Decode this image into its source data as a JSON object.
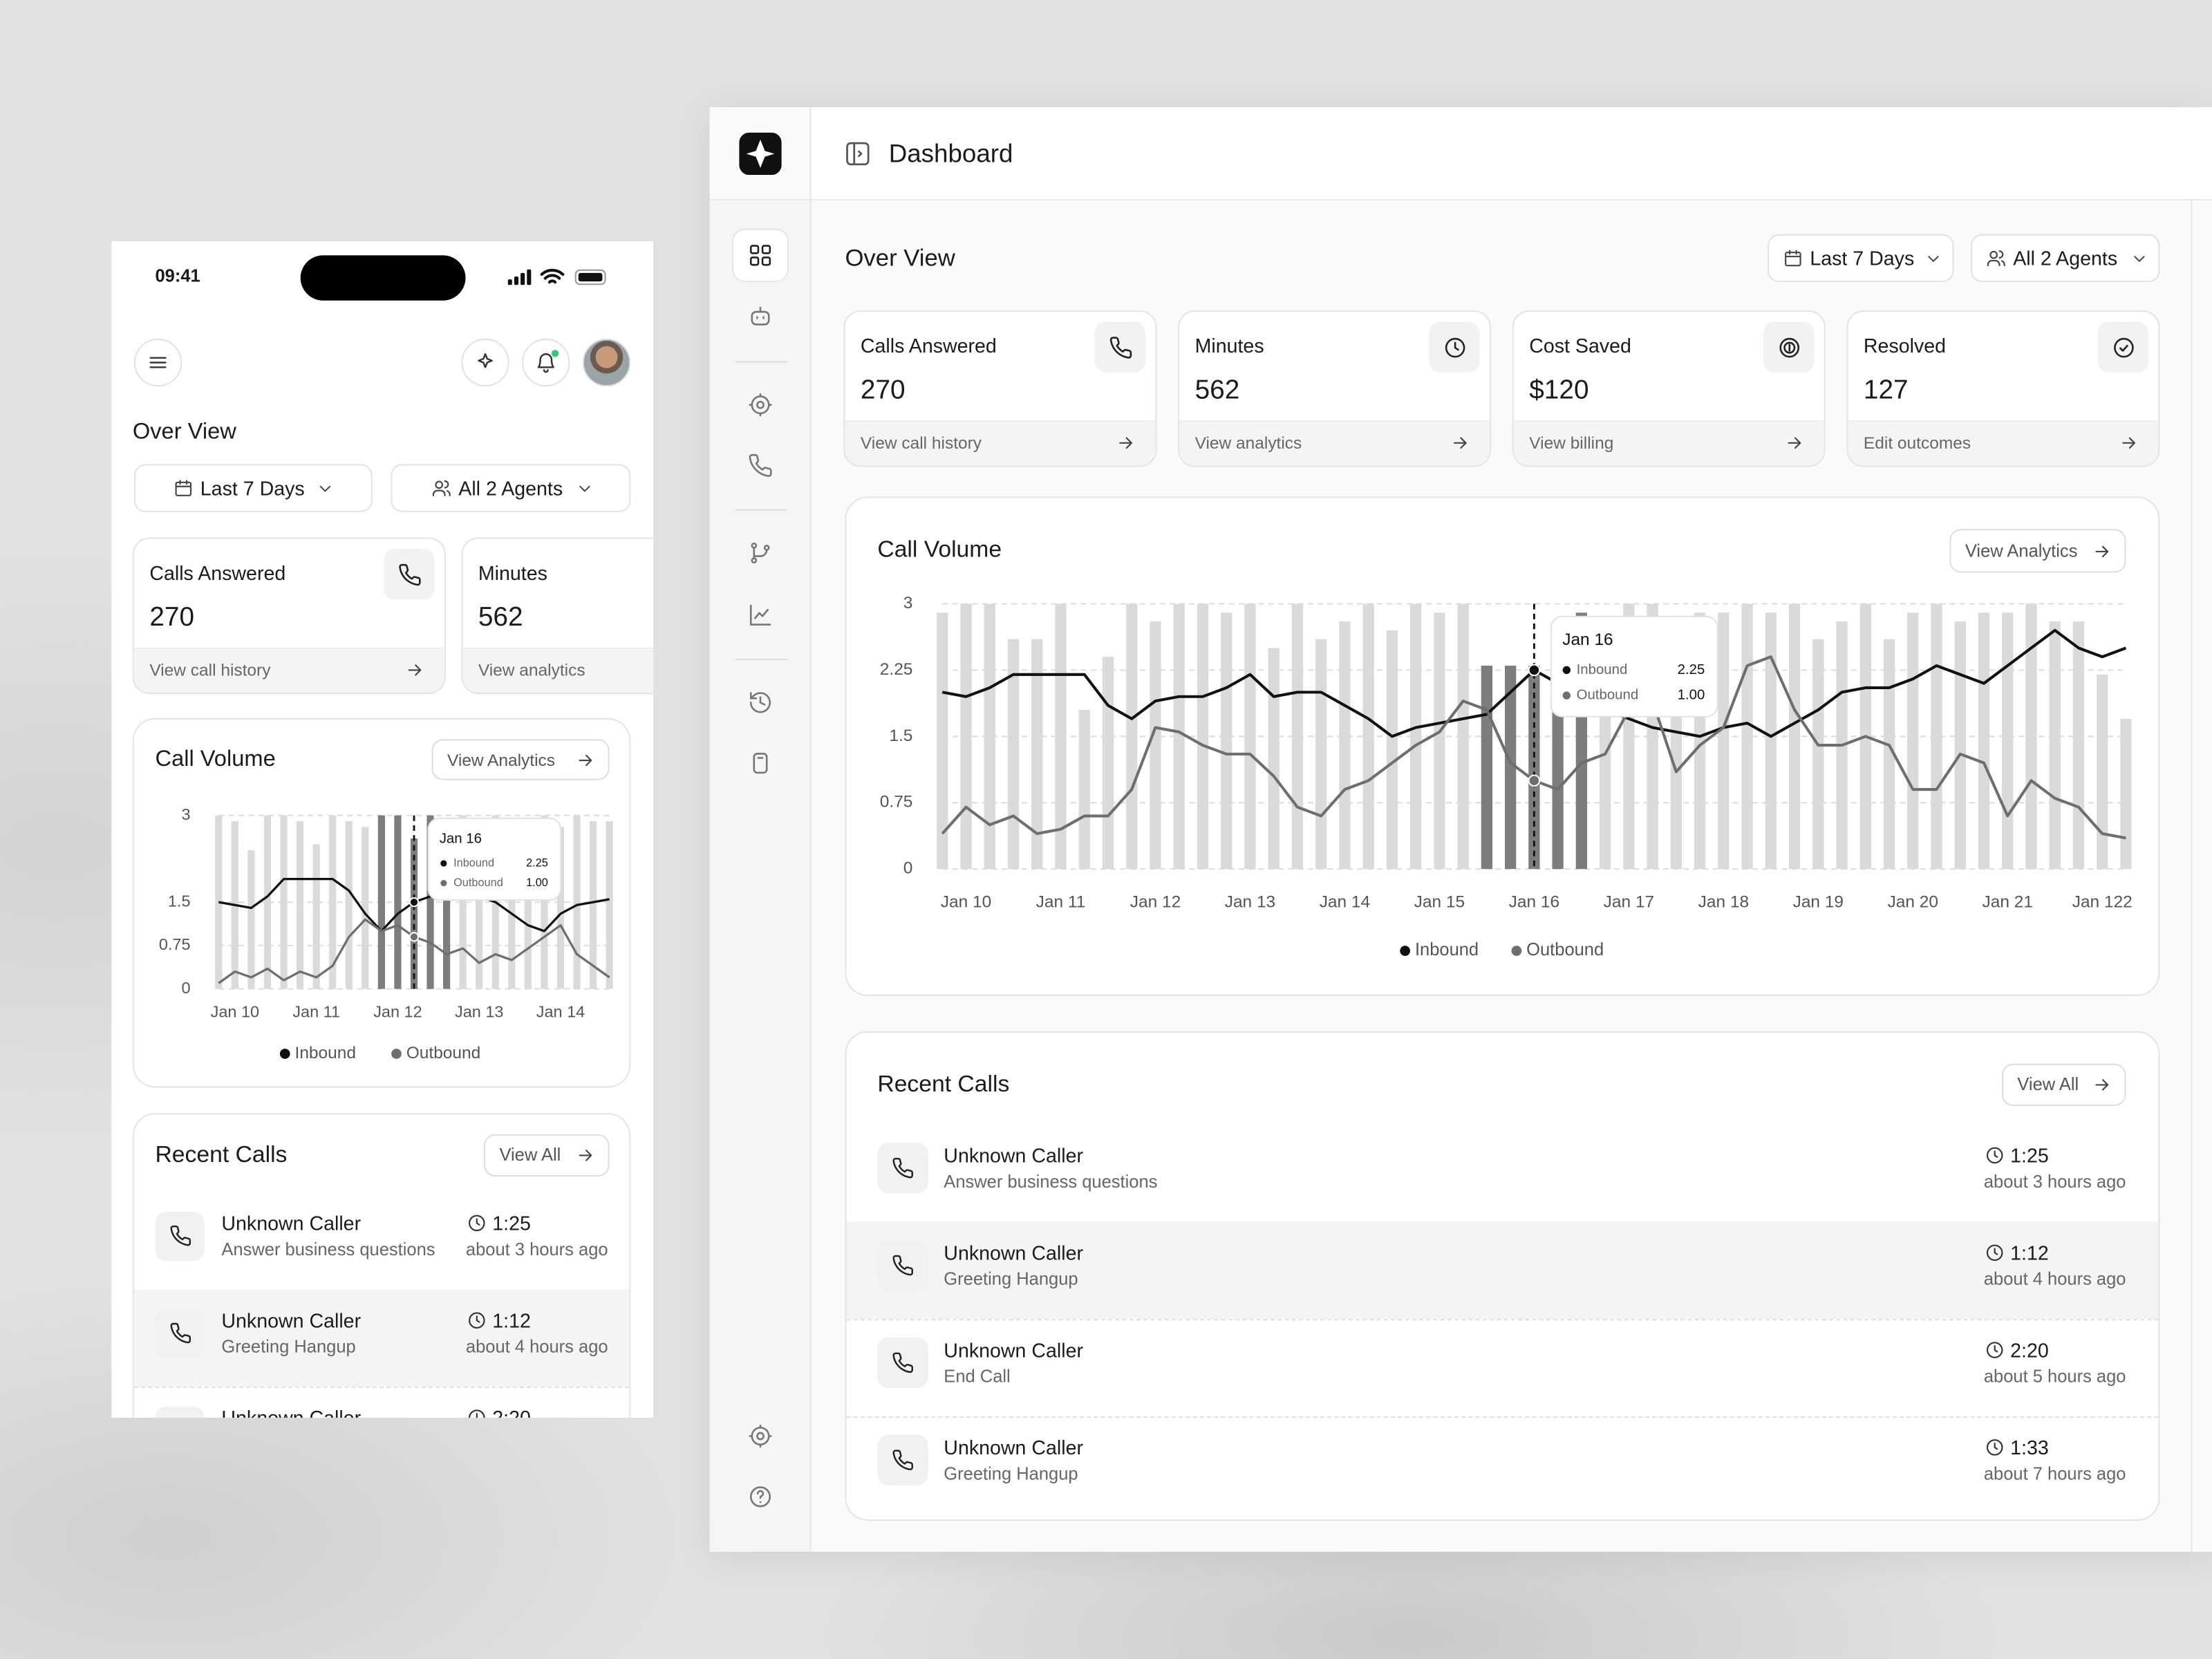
{
  "status_time": "09:41",
  "header": {
    "title": "Dashboard"
  },
  "overview": {
    "title": "Over View",
    "filters": [
      "Last 7 Days",
      "All 2 Agents"
    ]
  },
  "cards": [
    {
      "title": "Calls Answered",
      "value": "270",
      "link": "View call history"
    },
    {
      "title": "Minutes",
      "value": "562",
      "link": "View analytics"
    },
    {
      "title": "Cost Saved",
      "value": "$120",
      "link": "View billing"
    },
    {
      "title": "Resolved",
      "value": "127",
      "link": "Edit outcomes"
    }
  ],
  "chart_data": [
    {
      "type": "combo",
      "title": "Call Volume",
      "action": "View Analytics",
      "categories": [
        null,
        "Jan 10",
        null,
        null,
        null,
        null,
        "Jan 11",
        null,
        null,
        null,
        null,
        "Jan 12",
        null,
        null,
        null,
        null,
        "Jan 13",
        null,
        null,
        null,
        null,
        "Jan 14",
        null,
        null,
        null
      ],
      "bars": {
        "color": "#dadada",
        "highlight_color": "#7d7d7d",
        "values": [
          3,
          2.9,
          2.4,
          3,
          3,
          2.9,
          2.5,
          3,
          2.9,
          2.8,
          3,
          3,
          2.6,
          3,
          2.9,
          3,
          2.7,
          3,
          2.9,
          2.9,
          3,
          2.8,
          3,
          2.9,
          2.9
        ]
      },
      "series": [
        {
          "name": "Inbound",
          "color": "#111111",
          "values": [
            1.5,
            1.45,
            1.4,
            1.6,
            1.9,
            1.9,
            1.9,
            1.9,
            1.7,
            1.3,
            1.0,
            1.3,
            1.5,
            1.6,
            1.6,
            1.6,
            1.6,
            1.5,
            1.3,
            1.1,
            1.0,
            1.3,
            1.45,
            1.5,
            1.55
          ]
        },
        {
          "name": "Outbound",
          "color": "#6e6e6e",
          "values": [
            0.1,
            0.3,
            0.2,
            0.35,
            0.15,
            0.3,
            0.2,
            0.4,
            0.9,
            1.2,
            1.0,
            1.1,
            0.9,
            0.8,
            0.6,
            0.7,
            0.45,
            0.6,
            0.5,
            0.7,
            0.9,
            1.1,
            0.6,
            0.4,
            0.2
          ]
        }
      ],
      "ylim": [
        0,
        3
      ],
      "yticks": [
        0,
        0.75,
        1.5,
        3
      ],
      "grid": true,
      "tooltip": {
        "title": "Jan 16",
        "rows": [
          {
            "name": "Inbound",
            "value": 2.25
          },
          {
            "name": "Outbound",
            "value": 1,
            "label": "1.00"
          }
        ]
      }
    },
    {
      "type": "combo",
      "title": "Call Volume",
      "action": "View Analytics",
      "categories": [
        null,
        "Jan 10",
        null,
        null,
        null,
        "Jan 11",
        null,
        null,
        null,
        "Jan 12",
        null,
        null,
        null,
        "Jan 13",
        null,
        null,
        null,
        "Jan 14",
        null,
        null,
        null,
        "Jan 15",
        null,
        null,
        null,
        "Jan 16",
        null,
        null,
        null,
        "Jan 17",
        null,
        null,
        null,
        "Jan 18",
        null,
        null,
        null,
        "Jan 19",
        null,
        null,
        null,
        "Jan 20",
        null,
        null,
        null,
        "Jan 21",
        null,
        null,
        null,
        "Jan 122",
        null
      ],
      "bars": {
        "color": "#dadada",
        "highlight_color": "#7d7d7d",
        "values": [
          2.9,
          3,
          3,
          2.6,
          2.6,
          3,
          1.8,
          2.4,
          3,
          2.8,
          3,
          3,
          2.9,
          3,
          2.5,
          3,
          2.6,
          2.8,
          3,
          2.7,
          3,
          2.9,
          3,
          2.3,
          2.3,
          2.3,
          2.3,
          2.9,
          2.8,
          3,
          3,
          2.4,
          2.9,
          2.9,
          3,
          2.9,
          3,
          2.6,
          2.8,
          3,
          2.6,
          2.9,
          3,
          2.8,
          2.9,
          2.9,
          3,
          2.8,
          2.8,
          2.2,
          1.7
        ]
      },
      "series": [
        {
          "name": "Inbound",
          "color": "#111111",
          "values": [
            2.0,
            1.95,
            2.05,
            2.2,
            2.2,
            2.2,
            2.2,
            1.85,
            1.7,
            1.9,
            1.95,
            1.95,
            2.05,
            2.2,
            1.95,
            2.0,
            2.0,
            1.85,
            1.7,
            1.5,
            1.6,
            1.65,
            1.7,
            1.75,
            2.0,
            2.25,
            2.1,
            1.95,
            1.8,
            1.7,
            1.6,
            1.55,
            1.5,
            1.6,
            1.65,
            1.5,
            1.65,
            1.8,
            2.0,
            2.05,
            2.05,
            2.15,
            2.3,
            2.2,
            2.1,
            2.3,
            2.5,
            2.7,
            2.5,
            2.4,
            2.5
          ]
        },
        {
          "name": "Outbound",
          "color": "#6e6e6e",
          "values": [
            0.4,
            0.7,
            0.5,
            0.6,
            0.4,
            0.45,
            0.6,
            0.6,
            0.9,
            1.6,
            1.55,
            1.4,
            1.3,
            1.3,
            1.05,
            0.7,
            0.6,
            0.9,
            1.0,
            1.2,
            1.4,
            1.55,
            1.9,
            1.8,
            1.2,
            1.0,
            0.9,
            1.2,
            1.3,
            1.8,
            1.9,
            1.1,
            1.4,
            1.6,
            2.3,
            2.4,
            1.8,
            1.4,
            1.4,
            1.5,
            1.4,
            0.9,
            0.9,
            1.3,
            1.2,
            0.6,
            1.0,
            0.8,
            0.7,
            0.4,
            0.35
          ]
        }
      ],
      "ylim": [
        0,
        3
      ],
      "yticks": [
        0,
        0.75,
        1.5,
        2.25,
        3
      ],
      "grid": true,
      "tooltip": {
        "title": "Jan 16",
        "rows": [
          {
            "name": "Inbound",
            "value": 2.25
          },
          {
            "name": "Outbound",
            "value": 1,
            "label": "1.00"
          }
        ]
      }
    }
  ],
  "recent_calls": {
    "title": "Recent Calls",
    "action": "View All",
    "rows": [
      {
        "name": "Unknown Caller",
        "detail": "Answer business questions",
        "duration": "1:25",
        "time": "about 3 hours ago"
      },
      {
        "name": "Unknown Caller",
        "detail": "Greeting Hangup",
        "duration": "1:12",
        "time": "about 4 hours ago"
      },
      {
        "name": "Unknown Caller",
        "detail": "End Call",
        "duration": "2:20",
        "time": "about 5 hours ago"
      },
      {
        "name": "Unknown Caller",
        "detail": "Greeting Hangup",
        "duration": "1:33",
        "time": "about 7 hours ago"
      }
    ]
  }
}
